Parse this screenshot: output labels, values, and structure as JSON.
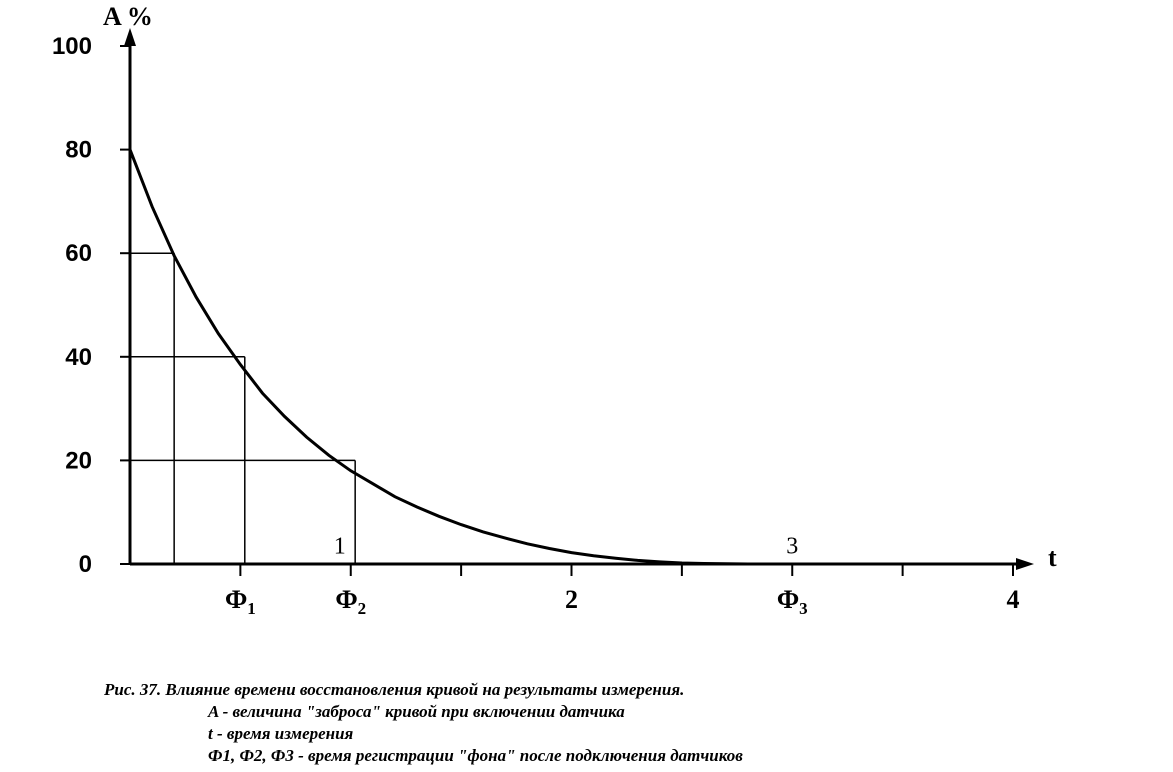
{
  "chart_data": {
    "type": "line",
    "ylabel": "A %",
    "xlabel": "t",
    "ylim": [
      0,
      100
    ],
    "xlim": [
      0,
      4
    ],
    "y_ticks": [
      "0",
      "20",
      "40",
      "60",
      "80",
      "100"
    ],
    "x_tick_labels": [
      {
        "x": 0.5,
        "main": "Ф",
        "sub": "1"
      },
      {
        "x": 1.0,
        "main": "Ф",
        "sub": "2"
      },
      {
        "x": 2.0,
        "main": "2",
        "sub": ""
      },
      {
        "x": 3.0,
        "main": "Ф",
        "sub": "3"
      },
      {
        "x": 4.0,
        "main": "4",
        "sub": ""
      }
    ],
    "series": [
      {
        "x": [
          0,
          0.1,
          0.2,
          0.3,
          0.4,
          0.5,
          0.6,
          0.7,
          0.8,
          0.9,
          1.0,
          1.1,
          1.2,
          1.3,
          1.4,
          1.5,
          1.6,
          1.7,
          1.8,
          1.9,
          2.0,
          2.1,
          2.2,
          2.3,
          2.4,
          2.5,
          2.6,
          2.7,
          2.8,
          2.9,
          3.0,
          3.2,
          3.4,
          3.6,
          3.8,
          4.0
        ],
        "values": [
          80,
          69,
          59.5,
          51.5,
          44.5,
          38.5,
          33,
          28.5,
          24.5,
          21,
          18,
          15.5,
          13,
          11,
          9.2,
          7.6,
          6.2,
          5,
          3.9,
          3,
          2.2,
          1.6,
          1.1,
          0.7,
          0.4,
          0.2,
          0.1,
          0.05,
          0,
          0,
          0,
          0,
          0,
          0,
          0,
          0
        ]
      }
    ],
    "reference_lines": [
      {
        "x": 0.2,
        "y": 60
      },
      {
        "x": 0.52,
        "y": 40
      },
      {
        "x": 1.02,
        "y": 20
      }
    ],
    "annotations": [
      {
        "text": "1",
        "x": 0.95,
        "y": 2
      },
      {
        "text": "3",
        "x": 3.0,
        "y": 2
      }
    ]
  },
  "caption": {
    "title": "Рис. 37. Влияние времени восстановления кривой на результаты измерения.",
    "lines": [
      "A - величина \"заброса\" кривой при включении датчика",
      "t - время измерения",
      "Ф1, Ф2, Ф3 - время регистрации \"фона\" после подключения датчиков"
    ]
  }
}
